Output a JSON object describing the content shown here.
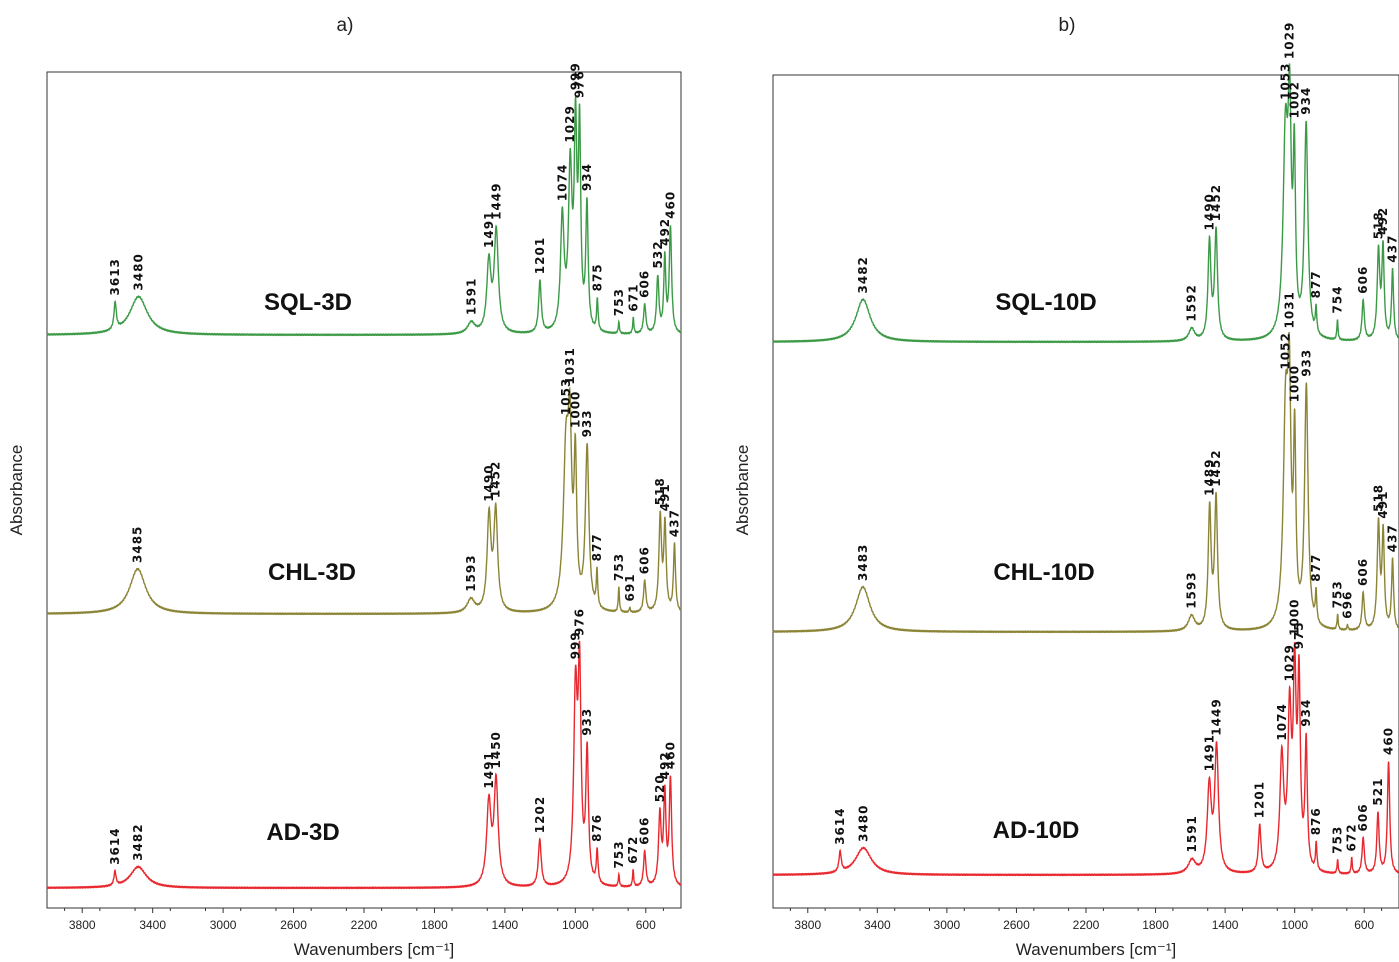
{
  "chart_data": [
    {
      "type": "line",
      "panel": "a)",
      "xlabel": "Wavenumbers [cm⁻¹]",
      "ylabel": "Absorbance",
      "xlim": [
        4000,
        400
      ],
      "x_reversed": true,
      "xticks": [
        3800,
        3400,
        3000,
        2600,
        2200,
        1800,
        1400,
        1000,
        600
      ],
      "series": [
        {
          "name": "SQL-3D",
          "color": "#3c9a46",
          "peaks": [
            3613,
            3480,
            1591,
            1491,
            1449,
            1201,
            1074,
            1029,
            999,
            976,
            934,
            875,
            753,
            671,
            606,
            532,
            492,
            460
          ]
        },
        {
          "name": "CHL-3D",
          "color": "#8b8436",
          "peaks": [
            3485,
            1593,
            1490,
            1452,
            1053,
            1031,
            1000,
            933,
            877,
            753,
            691,
            606,
            518,
            491,
            437
          ]
        },
        {
          "name": "AD-3D",
          "color": "#e8282e",
          "peaks": [
            3614,
            3482,
            1491,
            1450,
            1202,
            999,
            976,
            933,
            876,
            753,
            672,
            606,
            520,
            492,
            460
          ]
        }
      ]
    },
    {
      "type": "line",
      "panel": "b)",
      "xlabel": "Wavenumbers [cm⁻¹]",
      "ylabel": "Absorbance",
      "xlim": [
        4000,
        400
      ],
      "x_reversed": true,
      "xticks": [
        3800,
        3400,
        3000,
        2600,
        2200,
        1800,
        1400,
        1000,
        600
      ],
      "series": [
        {
          "name": "SQL-10D",
          "color": "#3c9a46",
          "peaks": [
            3482,
            1592,
            1490,
            1452,
            1053,
            1029,
            1002,
            934,
            877,
            754,
            606,
            518,
            492,
            437
          ]
        },
        {
          "name": "CHL-10D",
          "color": "#8b8436",
          "peaks": [
            3483,
            1593,
            1489,
            1452,
            1052,
            1031,
            1000,
            933,
            877,
            753,
            696,
            606,
            518,
            491,
            437
          ]
        },
        {
          "name": "AD-10D",
          "color": "#e8282e",
          "peaks": [
            3614,
            3480,
            1591,
            1491,
            1449,
            1201,
            1074,
            1029,
            1000,
            975,
            934,
            876,
            753,
            672,
            606,
            521,
            460
          ]
        }
      ]
    }
  ]
}
